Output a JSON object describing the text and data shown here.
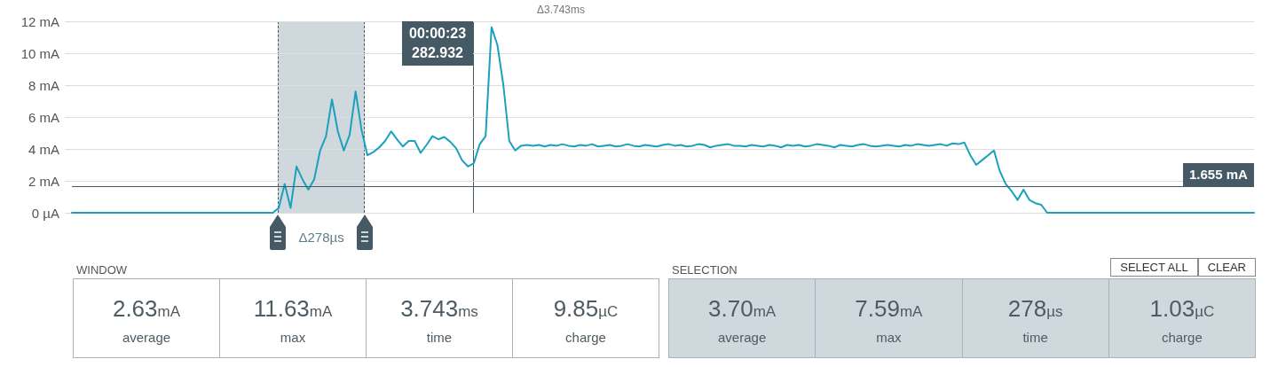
{
  "chart_data": [
    {
      "type": "line",
      "title": "Δ3.743ms",
      "line_style": "solid",
      "grid": "y",
      "tick_labels": "y",
      "categories": [
        null,
        null,
        null,
        null,
        null,
        null,
        null,
        null,
        null,
        null,
        null,
        null,
        null,
        null,
        null,
        null,
        null,
        null,
        null,
        null,
        null,
        null,
        null,
        null,
        null,
        null,
        null,
        null,
        null,
        null,
        null,
        null,
        null,
        null,
        null,
        null,
        null,
        null,
        null,
        null,
        null,
        null,
        null,
        null,
        null,
        null,
        null,
        null,
        null,
        null,
        null,
        null,
        null,
        null,
        null,
        null,
        null,
        null,
        null,
        null,
        null,
        null,
        null,
        null,
        null,
        null,
        null,
        null,
        null,
        null,
        null,
        null,
        null,
        null,
        null,
        null,
        null,
        null,
        null,
        null,
        null,
        null,
        null,
        null,
        null,
        null,
        null,
        null,
        null,
        null,
        null,
        null,
        null,
        null,
        null,
        null,
        null,
        null,
        null,
        null,
        null,
        null,
        null,
        null,
        null,
        null,
        null,
        null,
        null,
        null,
        null,
        null,
        null,
        null,
        null,
        null,
        null,
        null,
        null,
        null,
        null,
        null,
        null,
        null,
        null,
        null,
        null,
        null,
        null,
        null,
        null,
        null,
        null,
        null,
        null,
        null,
        null,
        null,
        null,
        null,
        null,
        null,
        null,
        null,
        null,
        null,
        null,
        null,
        null,
        null,
        null,
        null,
        null,
        null,
        null,
        null,
        null,
        null,
        null,
        null,
        null,
        null,
        null,
        null,
        null,
        null,
        null,
        null,
        null,
        null,
        null,
        null,
        null,
        null,
        null,
        null,
        null,
        null,
        null,
        null,
        null,
        null,
        null,
        null,
        null,
        null,
        null,
        null,
        null,
        null,
        null,
        null,
        null,
        null,
        null,
        null,
        null,
        null,
        null,
        null,
        null
      ],
      "ylim": [
        0,
        12
      ],
      "yticks": [
        {
          "value": 0,
          "label": "0 µA"
        },
        {
          "value": 2,
          "label": "2 mA"
        },
        {
          "value": 4,
          "label": "4 mA"
        },
        {
          "value": 6,
          "label": "6 mA"
        },
        {
          "value": 8,
          "label": "8 mA"
        },
        {
          "value": 10,
          "label": "10 mA"
        },
        {
          "value": 12,
          "label": "12 mA"
        }
      ],
      "series": [
        {
          "color": "#1ba0bd",
          "values": [
            0,
            0,
            0,
            0,
            0,
            0,
            0,
            0,
            0,
            0,
            0,
            0,
            0,
            0,
            0,
            0,
            0,
            0,
            0,
            0,
            0,
            0,
            0,
            0,
            0,
            0,
            0,
            0,
            0,
            0,
            0,
            0,
            0,
            0,
            0,
            0.3,
            1.8,
            0.3,
            2.9,
            2.1,
            1.45,
            2.1,
            3.9,
            4.8,
            7.1,
            5.1,
            3.9,
            4.9,
            7.6,
            5.2,
            3.6,
            3.8,
            4.1,
            4.5,
            5.1,
            4.6,
            4.15,
            4.5,
            4.5,
            3.75,
            4.25,
            4.8,
            4.6,
            4.75,
            4.45,
            4.05,
            3.3,
            2.9,
            3.1,
            4.3,
            4.8,
            11.63,
            10.5,
            8.0,
            4.5,
            3.9,
            4.2,
            4.25,
            4.2,
            4.25,
            4.15,
            4.25,
            4.2,
            4.3,
            4.2,
            4.15,
            4.25,
            4.2,
            4.3,
            4.15,
            4.2,
            4.25,
            4.15,
            4.2,
            4.3,
            4.2,
            4.15,
            4.25,
            4.2,
            4.15,
            4.25,
            4.3,
            4.2,
            4.25,
            4.15,
            4.2,
            4.3,
            4.25,
            4.1,
            4.2,
            4.25,
            4.3,
            4.2,
            4.2,
            4.15,
            4.25,
            4.2,
            4.15,
            4.25,
            4.2,
            4.1,
            4.25,
            4.2,
            4.25,
            4.15,
            4.2,
            4.3,
            4.25,
            4.2,
            4.1,
            4.25,
            4.2,
            4.15,
            4.25,
            4.3,
            4.2,
            4.15,
            4.2,
            4.25,
            4.2,
            4.15,
            4.25,
            4.2,
            4.3,
            4.25,
            4.2,
            4.25,
            4.3,
            4.2,
            4.35,
            4.3,
            4.4,
            3.6,
            3.0,
            3.3,
            3.6,
            3.9,
            2.6,
            1.8,
            1.35,
            0.8,
            1.45,
            0.8,
            0.6,
            0.5,
            0,
            0,
            0,
            0,
            0,
            0,
            0,
            0,
            0,
            0,
            0,
            0,
            0,
            0,
            0,
            0,
            0,
            0,
            0,
            0,
            0,
            0,
            0,
            0,
            0,
            0,
            0,
            0,
            0,
            0,
            0,
            0,
            0,
            0,
            0,
            0
          ]
        }
      ],
      "ref_lines": [
        {
          "axis": "y",
          "value": 1.655,
          "label": "1.655 mA",
          "color": "#455a64",
          "line_style": "solid"
        }
      ],
      "annotations": [
        "Δ278µs",
        "00:00:23\n282.932"
      ]
    },
    {
      "type": "other",
      "title": "WINDOW",
      "color": "#ffffff",
      "annotations": [
        "2.63mA",
        "average",
        "11.63mA",
        "max",
        "3.743ms",
        "time",
        "9.85µC",
        "charge"
      ]
    },
    {
      "type": "other",
      "title": "SELECTION",
      "color": "#cfd8dc",
      "annotations": [
        "3.70mA",
        "average",
        "7.59mA",
        "max",
        "278µs",
        "time",
        "1.03µC",
        "charge",
        "SELECT ALL",
        "CLEAR"
      ]
    }
  ]
}
